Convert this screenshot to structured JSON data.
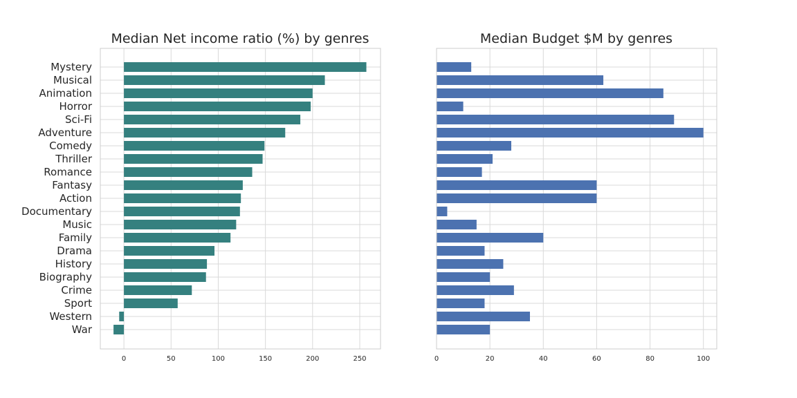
{
  "chart_data": [
    {
      "type": "bar",
      "orientation": "horizontal",
      "title": "Median Net income ratio (%) by genres",
      "xlabel": "",
      "ylabel": "",
      "categories": [
        "Mystery",
        "Musical",
        "Animation",
        "Horror",
        "Sci-Fi",
        "Adventure",
        "Comedy",
        "Thriller",
        "Romance",
        "Fantasy",
        "Action",
        "Documentary",
        "Music",
        "Family",
        "Drama",
        "History",
        "Biography",
        "Crime",
        "Sport",
        "Western",
        "War"
      ],
      "values": [
        257,
        213,
        200,
        198,
        187,
        171,
        149,
        147,
        136,
        126,
        124,
        123,
        119,
        113,
        96,
        88,
        87,
        72,
        57,
        -5,
        -11
      ],
      "xlim": [
        -25,
        272
      ],
      "xticks": [
        "0",
        "50",
        "100",
        "150",
        "200",
        "250"
      ],
      "color": "#35807f",
      "grid": true
    },
    {
      "type": "bar",
      "orientation": "horizontal",
      "title": "Median Budget $M by genres",
      "xlabel": "",
      "ylabel": "",
      "categories": [
        "Mystery",
        "Musical",
        "Animation",
        "Horror",
        "Sci-Fi",
        "Adventure",
        "Comedy",
        "Thriller",
        "Romance",
        "Fantasy",
        "Action",
        "Documentary",
        "Music",
        "Family",
        "Drama",
        "History",
        "Biography",
        "Crime",
        "Sport",
        "Western",
        "War"
      ],
      "values": [
        13,
        62.5,
        85,
        10,
        89,
        100,
        28,
        21,
        17,
        60,
        60,
        4,
        15,
        40,
        18,
        25,
        20,
        29,
        18,
        35,
        20
      ],
      "xlim": [
        0,
        105
      ],
      "xticks": [
        "0",
        "20",
        "40",
        "60",
        "80",
        "100"
      ],
      "color": "#4c72b0",
      "grid": true
    }
  ]
}
